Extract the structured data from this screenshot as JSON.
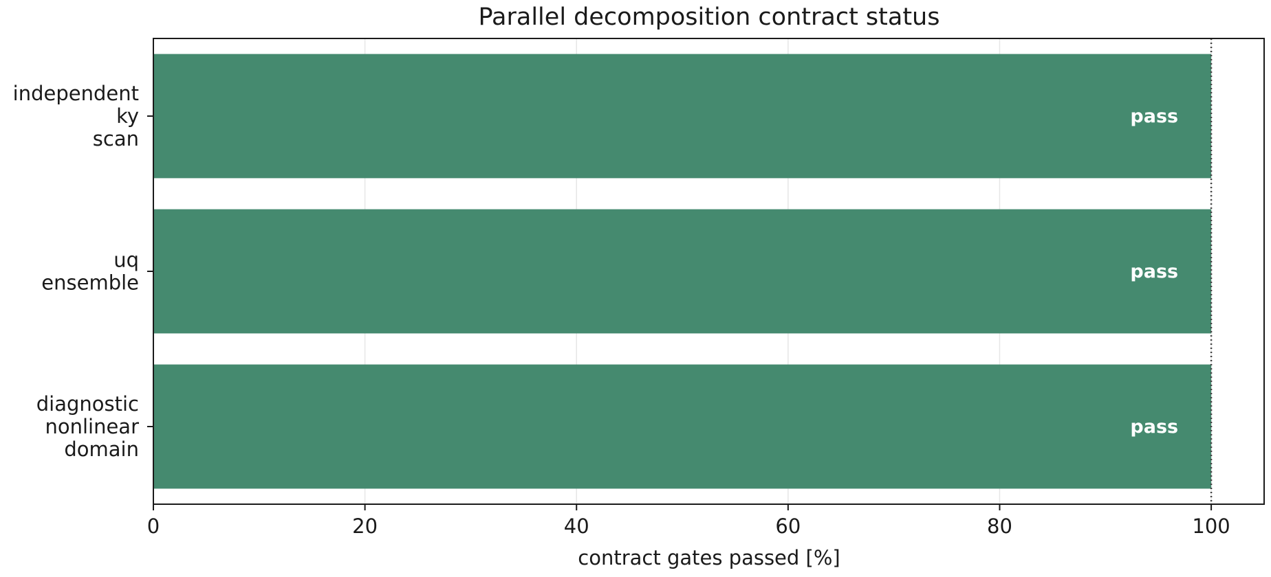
{
  "chart_data": {
    "type": "bar",
    "orientation": "horizontal",
    "title": "Parallel decomposition contract status",
    "xlabel": "contract gates passed [%]",
    "ylabel": "",
    "xlim": [
      0,
      105
    ],
    "x_ticks": [
      0,
      20,
      40,
      60,
      80,
      100
    ],
    "reference_line": 100,
    "grid": "vertical",
    "categories": [
      [
        "independent",
        "ky",
        "scan"
      ],
      [
        "uq",
        "ensemble"
      ],
      [
        "diagnostic",
        "nonlinear",
        "domain"
      ]
    ],
    "values": [
      100,
      100,
      100
    ],
    "labels": [
      "pass",
      "pass",
      "pass"
    ],
    "bar_color": "#458a6f",
    "label_color": "#ffffff"
  }
}
